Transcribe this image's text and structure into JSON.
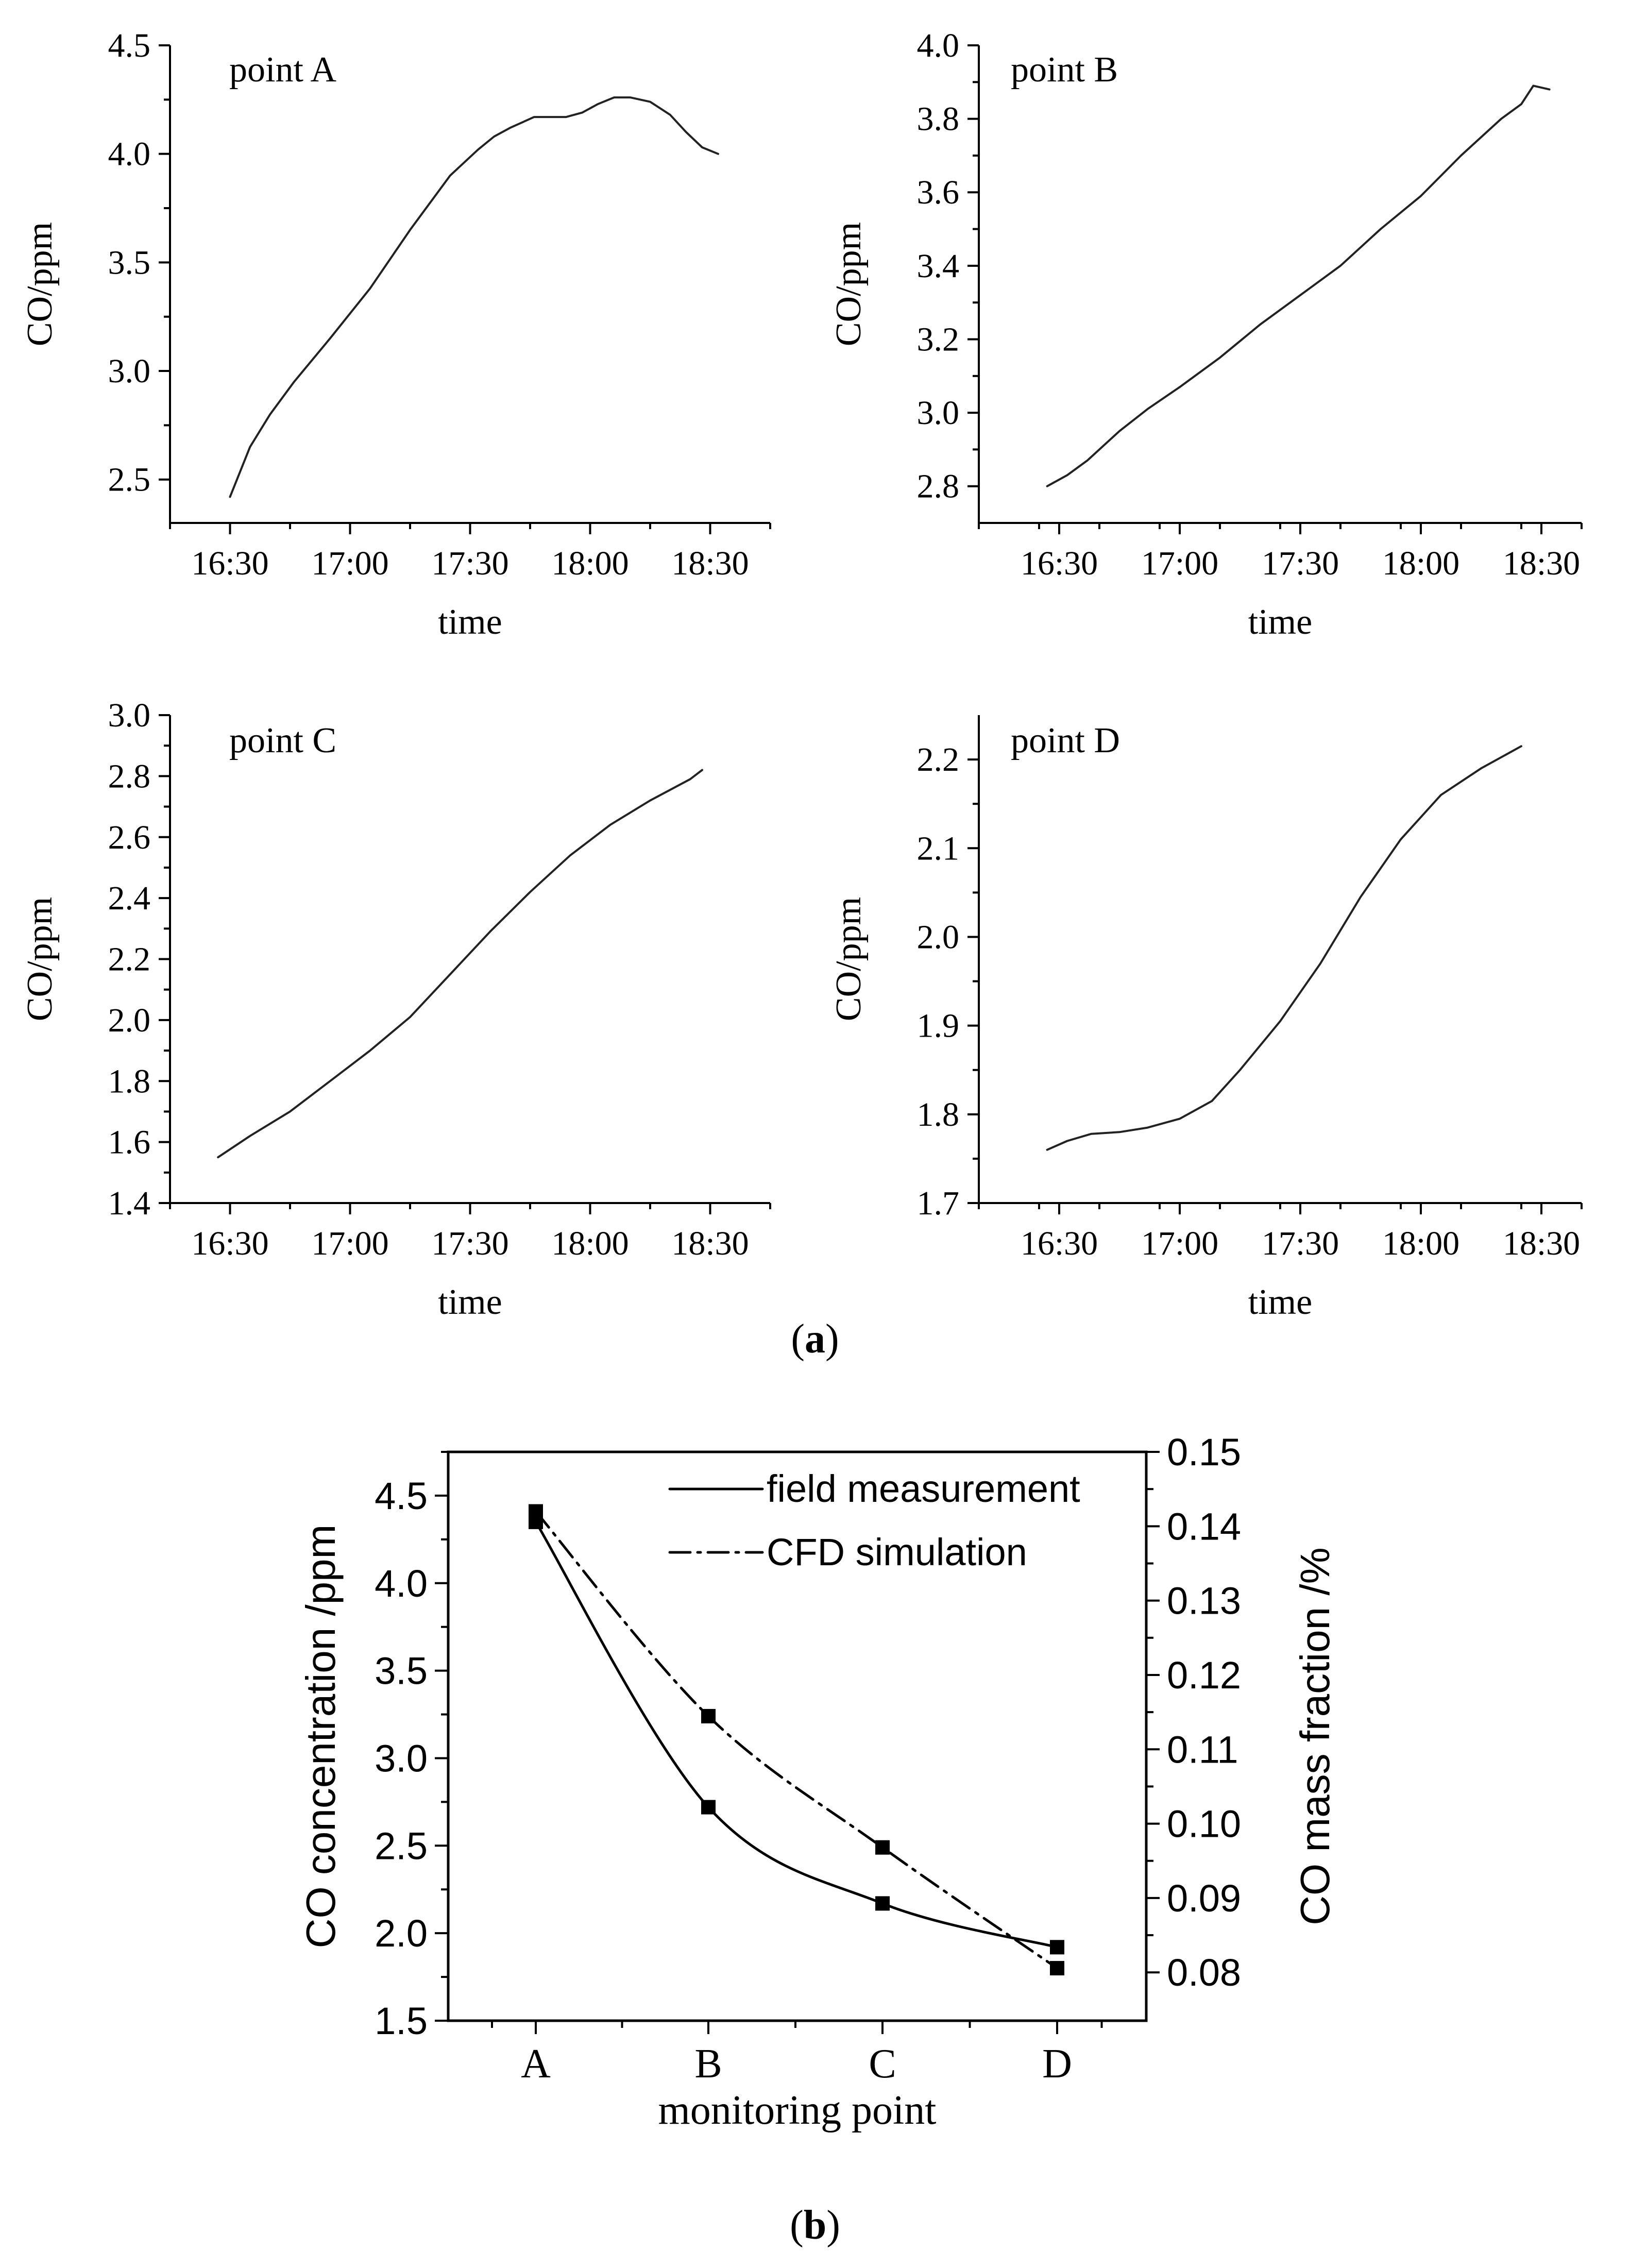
{
  "chart_data": [
    {
      "id": "A",
      "type": "line",
      "title": "point A",
      "xlabel": "time",
      "ylabel": "CO/ppm",
      "x_ticks": [
        "16:30",
        "17:00",
        "17:30",
        "18:00",
        "18:30"
      ],
      "x_tick_values": [
        0,
        30,
        60,
        90,
        120
      ],
      "xlim": [
        -15,
        135
      ],
      "y_ticks": [
        "2.5",
        "3.0",
        "3.5",
        "4.0",
        "4.5"
      ],
      "ylim": [
        2.3,
        4.5
      ],
      "x": [
        0,
        5,
        10,
        16,
        25,
        35,
        45,
        55,
        62,
        66,
        70,
        76,
        80,
        84,
        88,
        92,
        96,
        100,
        105,
        110,
        114,
        118,
        122
      ],
      "values": [
        2.42,
        2.65,
        2.8,
        2.95,
        3.15,
        3.38,
        3.65,
        3.9,
        4.02,
        4.08,
        4.12,
        4.17,
        4.17,
        4.17,
        4.19,
        4.23,
        4.26,
        4.26,
        4.24,
        4.18,
        4.1,
        4.03,
        4.0
      ]
    },
    {
      "id": "B",
      "type": "line",
      "title": "point B",
      "xlabel": "time",
      "ylabel": "CO/ppm",
      "x_ticks": [
        "16:30",
        "17:00",
        "17:30",
        "18:00",
        "18:30"
      ],
      "x_tick_values": [
        0,
        30,
        60,
        90,
        120
      ],
      "xlim": [
        -20,
        130
      ],
      "y_ticks": [
        "2.8",
        "3.0",
        "3.2",
        "3.4",
        "3.6",
        "3.8",
        "4.0"
      ],
      "ylim": [
        2.7,
        4.0
      ],
      "x": [
        -3,
        2,
        7,
        15,
        22,
        30,
        40,
        50,
        60,
        70,
        80,
        90,
        100,
        110,
        115,
        118,
        122
      ],
      "values": [
        2.8,
        2.83,
        2.87,
        2.95,
        3.01,
        3.07,
        3.15,
        3.24,
        3.32,
        3.4,
        3.5,
        3.59,
        3.7,
        3.8,
        3.84,
        3.89,
        3.88
      ]
    },
    {
      "id": "C",
      "type": "line",
      "title": "point C",
      "xlabel": "time",
      "ylabel": "CO/ppm",
      "x_ticks": [
        "16:30",
        "17:00",
        "17:30",
        "18:00",
        "18:30"
      ],
      "x_tick_values": [
        0,
        30,
        60,
        90,
        120
      ],
      "xlim": [
        -15,
        135
      ],
      "y_ticks": [
        "1.4",
        "1.6",
        "1.8",
        "2.0",
        "2.2",
        "2.4",
        "2.6",
        "2.8",
        "3.0"
      ],
      "ylim": [
        1.4,
        3.0
      ],
      "x": [
        -3,
        5,
        15,
        25,
        35,
        45,
        55,
        65,
        75,
        85,
        95,
        105,
        115,
        118
      ],
      "values": [
        1.55,
        1.62,
        1.7,
        1.8,
        1.9,
        2.01,
        2.15,
        2.29,
        2.42,
        2.54,
        2.64,
        2.72,
        2.79,
        2.82
      ]
    },
    {
      "id": "D",
      "type": "line",
      "title": "point D",
      "xlabel": "time",
      "ylabel": "CO/ppm",
      "x_ticks": [
        "16:30",
        "17:00",
        "17:30",
        "18:00",
        "18:30"
      ],
      "x_tick_values": [
        0,
        30,
        60,
        90,
        120
      ],
      "xlim": [
        -20,
        130
      ],
      "y_ticks": [
        "1.7",
        "1.8",
        "1.9",
        "2.0",
        "2.1",
        "2.2"
      ],
      "ylim": [
        1.7,
        2.25
      ],
      "x": [
        -3,
        2,
        8,
        15,
        22,
        30,
        38,
        45,
        55,
        65,
        75,
        85,
        95,
        105,
        115
      ],
      "values": [
        1.76,
        1.77,
        1.778,
        1.78,
        1.785,
        1.795,
        1.815,
        1.85,
        1.905,
        1.97,
        2.045,
        2.11,
        2.16,
        2.19,
        2.215
      ]
    },
    {
      "id": "B2",
      "type": "line",
      "categories": [
        "A",
        "B",
        "C",
        "D"
      ],
      "xlabel": "monitoring point",
      "ylabel": "CO  concentration  /ppm",
      "ylabel_right": "CO mass fraction /%",
      "ylim": [
        1.5,
        4.75
      ],
      "y_ticks": [
        "1.5",
        "2.0",
        "2.5",
        "3.0",
        "3.5",
        "4.0",
        "4.5"
      ],
      "ylim_right": [
        0.0735,
        0.15
      ],
      "y_ticks_right": [
        "0.08",
        "0.09",
        "0.10",
        "0.11",
        "0.12",
        "0.13",
        "0.14",
        "0.15"
      ],
      "series": [
        {
          "name": "field measurement",
          "axis": "left",
          "values": [
            4.35,
            2.72,
            2.17,
            1.92
          ]
        },
        {
          "name": "CFD  simulation",
          "axis": "left",
          "values": [
            4.41,
            3.24,
            2.49,
            1.8
          ]
        }
      ]
    }
  ],
  "captions": {
    "a": "(a)",
    "b": "(b)"
  },
  "caption_parts": {
    "a": {
      "open": "(",
      "letter": "a",
      "close": ")"
    },
    "b": {
      "open": "(",
      "letter": "b",
      "close": ")"
    }
  }
}
